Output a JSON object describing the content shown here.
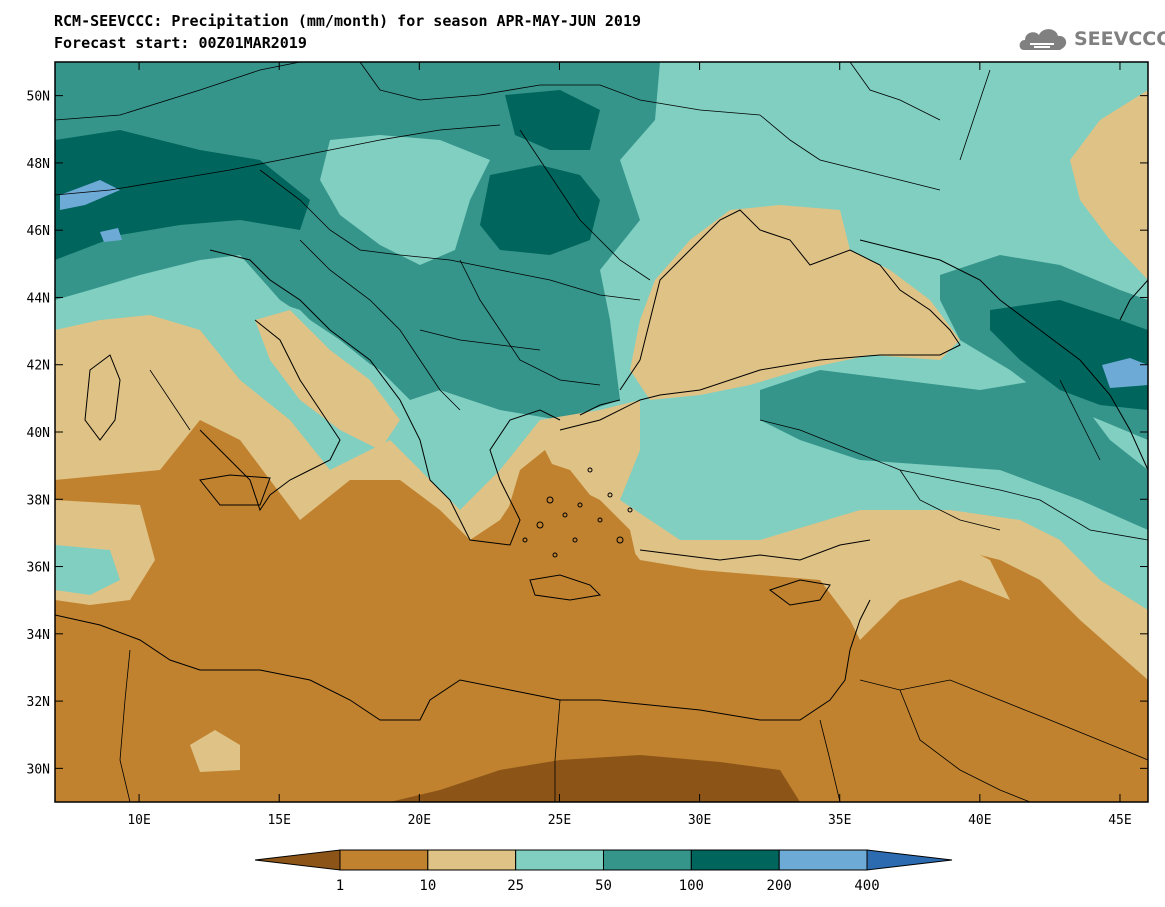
{
  "header": {
    "title_line1": "RCM-SEEVCCC: Precipitation (mm/month) for season APR-MAY-JUN 2019",
    "title_line2": "Forecast start: 00Z01MAR2019",
    "logo_text": "SEEVCCC"
  },
  "map": {
    "lon_range": [
      7,
      46
    ],
    "lat_range": [
      29,
      51
    ],
    "lat_ticks": [
      "50N",
      "48N",
      "46N",
      "44N",
      "42N",
      "40N",
      "38N",
      "36N",
      "34N",
      "32N",
      "30N"
    ],
    "lon_ticks": [
      "10E",
      "15E",
      "20E",
      "25E",
      "30E",
      "35E",
      "40E",
      "45E"
    ]
  },
  "legend": {
    "levels": [
      "1",
      "10",
      "25",
      "50",
      "100",
      "200",
      "400"
    ],
    "colors": [
      "#8c5517",
      "#c0822f",
      "#dfc286",
      "#80cfc1",
      "#35958b",
      "#00665d",
      "#6eaad6",
      "#2c6bb0"
    ]
  }
}
